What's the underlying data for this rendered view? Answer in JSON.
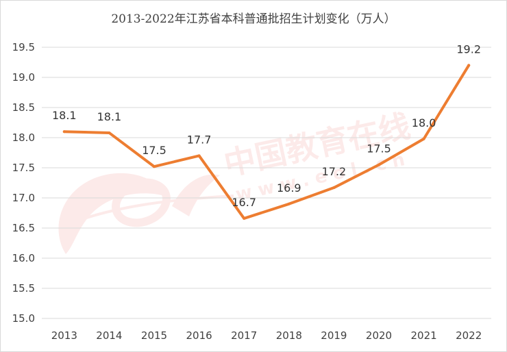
{
  "chart_data": {
    "type": "line",
    "title": "2013-2022年江苏省本科普通批招生计划变化（万人）",
    "xlabel": "",
    "ylabel": "",
    "categories": [
      "2013",
      "2014",
      "2015",
      "2016",
      "2017",
      "2018",
      "2019",
      "2020",
      "2021",
      "2022"
    ],
    "series": [
      {
        "values": [
          18.1,
          18.08,
          17.52,
          17.7,
          16.66,
          16.9,
          17.17,
          17.55,
          17.98,
          19.2
        ],
        "labels": [
          "18.1",
          "18.1",
          "17.5",
          "17.7",
          "16.7",
          "16.9",
          "17.2",
          "17.5",
          "18.0",
          "19.2"
        ]
      }
    ],
    "ylim": [
      15.0,
      19.5
    ],
    "yticks": [
      "15.0",
      "15.5",
      "16.0",
      "16.5",
      "17.0",
      "17.5",
      "18.0",
      "18.5",
      "19.0",
      "19.5"
    ],
    "grid": true,
    "legend": "none",
    "line_color": "#ed7d31"
  },
  "watermark": {
    "text_cn": "中国教育在线",
    "text_url": "w w w . e o l . c n",
    "color": "#e53935"
  }
}
